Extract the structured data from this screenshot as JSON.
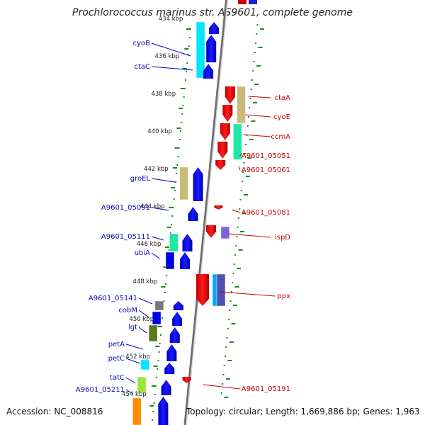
{
  "title": "Prochlorococcus marinus str. AS9601, complete genome",
  "footer": {
    "accession": "Accession: NC_008816",
    "summary": "Topology: circular; Length: 1,669,886 bp; Genes: 1,963"
  },
  "ruler": [
    "434 kbp",
    "436 kbp",
    "438 kbp",
    "440 kbp",
    "442 kbp",
    "444 kbp",
    "446 kbp",
    "448 kbp",
    "450 kbp",
    "452 kbp",
    "454 kbp"
  ],
  "left_labels": [
    "cyoB",
    "ctaC",
    "groEL",
    "A9601_05091",
    "A9601_05111",
    "ubiA",
    "A9601_05141",
    "cobM",
    "lgt",
    "petA",
    "petC",
    "tatC",
    "A9601_05211"
  ],
  "right_labels": [
    "ctaA",
    "cyoE",
    "ccmA",
    "A9601_05051",
    "A9601_05061",
    "A9601_05081",
    "ispD",
    "ppx",
    "A9601_05191"
  ],
  "colors": {
    "forward_strand": "#0000e6",
    "reverse_strand": "#e60000",
    "backbone": "#9a9a9a",
    "tick_marks": "#1a8a1a",
    "left_label_text": "#0a0ab4",
    "right_label_text": "#c80000"
  }
}
